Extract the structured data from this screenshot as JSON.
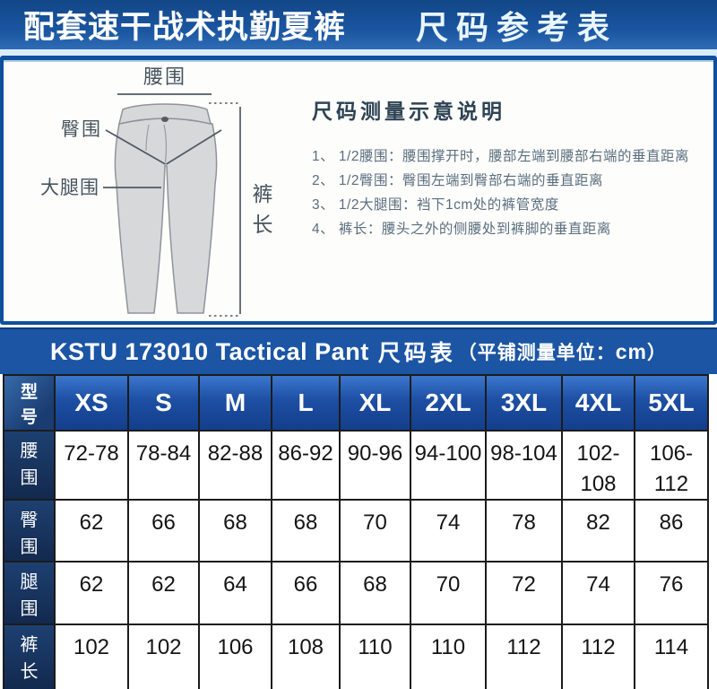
{
  "colors": {
    "header_blue": "#1a55a0",
    "banner_blue": "#1b55a4",
    "size_header_blue": "#1d4fa3",
    "row_header_navy": "#16335f",
    "pale_strip": "#d9ecf7",
    "pants_fill": "#d6d8da"
  },
  "header": {
    "left_title": "配套速干战术执勤夏裤",
    "right_title": "尺码参考表"
  },
  "diagram": {
    "labels": {
      "waist": "腰围",
      "hip": "臀围",
      "thigh": "大腿围",
      "length_char1": "裤",
      "length_char2": "长"
    }
  },
  "instructions": {
    "heading": "尺码测量示意说明",
    "items": [
      "1、 1/2腰围：腰围撑开时，腰部左端到腰部右端的垂直距离",
      "2、 1/2臀围：臀围左端到臀部右端的垂直距离",
      "3、 1/2大腿围：裆下1cm处的裤管宽度",
      "4、 裤长：腰头之外的侧腰处到裤脚的垂直距离"
    ]
  },
  "banner": {
    "title_en": "KSTU 173010 Tactical Pant",
    "title_cn": "尺码表",
    "unit_prefix": "（平铺测量单位：",
    "unit_value": "cm",
    "unit_suffix": "）"
  },
  "table": {
    "corner_label": "型号",
    "sizes": [
      "XS",
      "S",
      "M",
      "L",
      "XL",
      "2XL",
      "3XL",
      "4XL",
      "5XL"
    ],
    "rows": [
      {
        "label": "腰围",
        "values": [
          "72-78",
          "78-84",
          "82-88",
          "86-92",
          "90-96",
          "94-100",
          "98-104",
          "102-108",
          "106-112"
        ]
      },
      {
        "label": "臀围",
        "values": [
          "62",
          "66",
          "68",
          "68",
          "70",
          "74",
          "78",
          "82",
          "86"
        ]
      },
      {
        "label": "腿围",
        "values": [
          "62",
          "62",
          "64",
          "66",
          "68",
          "70",
          "72",
          "74",
          "76"
        ]
      },
      {
        "label": "裤长",
        "values": [
          "102",
          "102",
          "106",
          "108",
          "110",
          "110",
          "112",
          "112",
          "114"
        ]
      }
    ]
  }
}
